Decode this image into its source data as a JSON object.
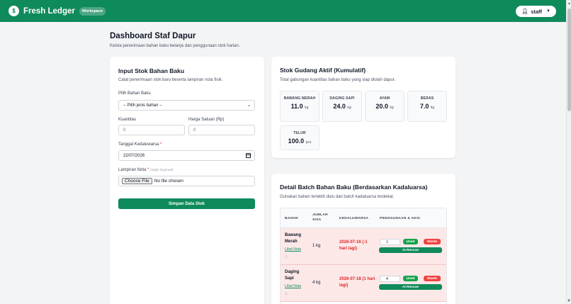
{
  "header": {
    "logo_glyph": "$",
    "brand": "Fresh Ledger",
    "badge": "Workspace",
    "user_label": "staff",
    "user_icon": "user-icon",
    "caret_icon": "caret-down-icon",
    "accent_color": "#0f8a5b"
  },
  "page": {
    "title": "Dashboard Staf Dapur",
    "subtitle": "Kelola penerimaan bahan baku belanja dan penggunaan stok harian."
  },
  "form": {
    "title": "Input Stok Bahan Baku",
    "desc": "Catat penerimaan stok baru beserta lampiran nota fisik.",
    "ingredient_label": "Pilih Bahan Baku",
    "ingredient_value": "-- Pilih jenis bahan --",
    "qty_label": "Kuantitas",
    "qty_placeholder": "0",
    "price_label": "Harga Satuan (Rp)",
    "price_placeholder": "0",
    "expiry_label": "Tanggal Kedaluwarsa",
    "expiry_required": "*",
    "expiry_value": "22/07/2026",
    "receipt_label": "Lampiran Nota",
    "receipt_required": "*",
    "receipt_hint": "(Wajib diupload)",
    "file_button": "Choose File",
    "file_status": "No file chosen",
    "submit_label": "Simpan Data Stok"
  },
  "stock": {
    "title": "Stok Gudang Aktif (Kumulatif)",
    "desc": "Total gabungan kuantitas bahan baku yang siap diolah dapur.",
    "items": [
      {
        "name": "BAWANG MERAH",
        "value": "11.0",
        "unit": "kg"
      },
      {
        "name": "DAGING SAPI",
        "value": "24.0",
        "unit": "kg"
      },
      {
        "name": "AYAM",
        "value": "20.0",
        "unit": "kg"
      },
      {
        "name": "BERAS",
        "value": "7.0",
        "unit": "kg"
      },
      {
        "name": "TELUR",
        "value": "100.0",
        "unit": "pcs"
      }
    ]
  },
  "batch": {
    "title": "Detail Batch Bahan Baku (Berdasarkan Kadaluarsa)",
    "desc": "Gunakan bahan terlebih dulu dari batch kadaluarsa terdekat.",
    "headers": {
      "ingredient": "BAHAN",
      "qty": "JUMLAH SISA",
      "expiry": "KEDALUWARSA",
      "actions": "PENGGUNAAN & AKSI"
    },
    "link_label": "Lihat Nota",
    "used_label": "Used",
    "waste_label": "Waste",
    "rescue_label": "AI Rescue",
    "danger_color": "#dc2626",
    "rows": [
      {
        "name": "Bawang Merah",
        "qty": "1 kg",
        "expiry": "2026-07-16 (-1 hari lagi)",
        "use_value": "1"
      },
      {
        "name": "Daging Sapi",
        "qty": "4 kg",
        "expiry": "2026-07-18 (1 hari lagi)",
        "use_value": "4"
      }
    ]
  }
}
